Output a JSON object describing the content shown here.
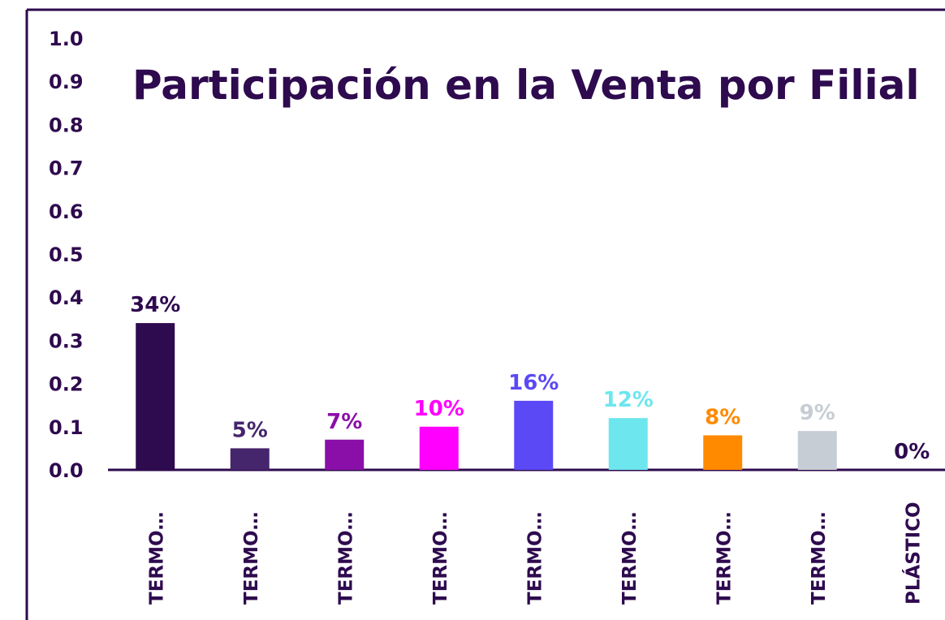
{
  "chart_data": {
    "type": "bar",
    "title": "Participación en la Venta por Filial",
    "categories": [
      "TERMO…",
      "TERMO…",
      "TERMO…",
      "TERMO…",
      "TERMO…",
      "TERMO…",
      "TERMO…",
      "TERMO…",
      "PLÁSTICO"
    ],
    "values": [
      0.34,
      0.05,
      0.07,
      0.1,
      0.16,
      0.12,
      0.08,
      0.09,
      0
    ],
    "value_labels": [
      "34%",
      "5%",
      "7%",
      "10%",
      "16%",
      "12%",
      "8%",
      "9%",
      "0%"
    ],
    "colors": [
      "#2e0a4e",
      "#45256b",
      "#8a0fa8",
      "#ff00ff",
      "#5b49f5",
      "#6de6ee",
      "#ff8a00",
      "#c7cdd4",
      "#2e0a4e"
    ],
    "ylim": [
      0,
      1
    ],
    "yticks": [
      {
        "value": 0,
        "label": "0.0"
      },
      0.1,
      0.2,
      0.3,
      0.4,
      0.5,
      0.6,
      0.7,
      0.8,
      0.9,
      {
        "value": 1,
        "label": "1.0"
      }
    ]
  }
}
